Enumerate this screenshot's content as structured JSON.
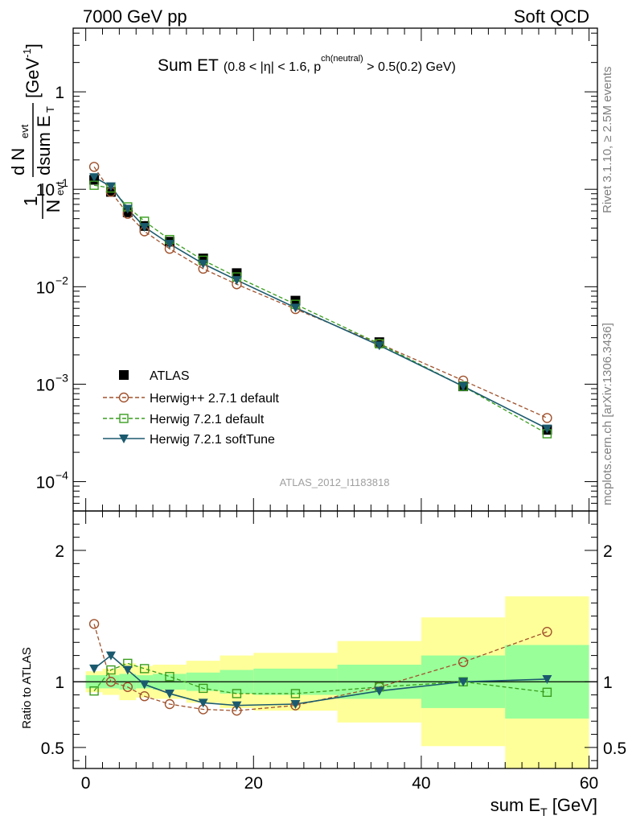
{
  "header": {
    "left": "7000 GeV pp",
    "right": "Soft QCD"
  },
  "side_labels": {
    "rivet": "Rivet 3.1.10, ≥ 2.5M events",
    "mcplots": "mcplots.cern.ch [arXiv:1306.3436]"
  },
  "title": {
    "main": "Sum ET",
    "cut_a": "(0.8 < |η| < 1.6, p",
    "cut_sup": "ch(neutral)",
    "cut_b": " > 0.5(0.2) GeV)"
  },
  "analysis_id": "ATLAS_2012_I1183818",
  "axes": {
    "ylabel_top_frac_num": "1",
    "ylabel_top_frac_den": "N",
    "ylabel_top_den_sub": "evt",
    "ylabel_top_num": "d N",
    "ylabel_top_num_sub": "evt",
    "ylabel_top_dsum": "dsum E",
    "ylabel_top_dsum_sub": "T",
    "ylabel_top_unit": "[GeV",
    "ylabel_top_unit_sup": "-1",
    "ylabel_top_unit_close": "]",
    "ylabel_bottom": "Ratio to ATLAS",
    "xlabel": "sum E",
    "xlabel_sub": "T",
    "xlabel_unit": " [GeV]"
  },
  "colors": {
    "atlas": "#000000",
    "herwigpp": "#a0522d",
    "herwig721": "#3a9e1e",
    "softtune": "#1b5a6e",
    "band_yellow": "#ffff99",
    "band_green": "#99ff99"
  },
  "chart_data": [
    {
      "type": "scatter",
      "panel": "main",
      "yscale": "log",
      "xlim": [
        -1.5,
        61
      ],
      "ylim": [
        5e-05,
        4.5
      ],
      "y_ticks": [
        {
          "value": 1,
          "label": "1"
        },
        {
          "value": 0.1,
          "label": "10",
          "exp": "−1"
        },
        {
          "value": 0.01,
          "label": "10",
          "exp": "−2"
        },
        {
          "value": 0.001,
          "label": "10",
          "exp": "−3"
        },
        {
          "value": 0.0001,
          "label": "10",
          "exp": "−4"
        }
      ],
      "x": [
        1,
        3,
        5,
        7,
        10,
        14,
        18,
        25,
        35,
        45,
        55
      ],
      "series": [
        {
          "name": "ATLAS",
          "key": "atlas",
          "marker": "square-filled",
          "values": [
            0.125,
            0.094,
            0.058,
            0.042,
            0.029,
            0.0195,
            0.0138,
            0.0072,
            0.0027,
            0.00095,
            0.00034
          ]
        },
        {
          "name": "Herwig++ 2.7.1 default",
          "key": "herwigpp",
          "marker": "circle-open",
          "dash": true,
          "values": [
            0.17,
            0.094,
            0.056,
            0.037,
            0.0245,
            0.0153,
            0.0106,
            0.0059,
            0.0026,
            0.00109,
            0.00045
          ]
        },
        {
          "name": "Herwig 7.2.1 default",
          "key": "herwig721",
          "marker": "square-open",
          "dash": true,
          "values": [
            0.11,
            0.103,
            0.066,
            0.047,
            0.0305,
            0.0187,
            0.0126,
            0.0066,
            0.0026,
            0.00095,
            0.00031
          ]
        },
        {
          "name": "Herwig 7.2.1 softTune",
          "key": "softtune",
          "marker": "triangle-down",
          "dash": false,
          "values": [
            0.133,
            0.107,
            0.063,
            0.041,
            0.0275,
            0.0172,
            0.0117,
            0.0061,
            0.0025,
            0.00095,
            0.00035
          ]
        }
      ]
    },
    {
      "type": "scatter",
      "panel": "ratio",
      "xlabel": "sum E_T [GeV]",
      "ylabel": "Ratio to ATLAS",
      "xlim": [
        -1.5,
        61
      ],
      "ylim": [
        0.34,
        2.3
      ],
      "x_ticks": [
        0,
        20,
        40,
        60
      ],
      "y_ticks": [
        0.5,
        1,
        2
      ],
      "bins": [
        [
          0,
          2
        ],
        [
          2,
          4
        ],
        [
          4,
          6
        ],
        [
          6,
          8
        ],
        [
          8,
          12
        ],
        [
          12,
          16
        ],
        [
          16,
          20
        ],
        [
          20,
          30
        ],
        [
          30,
          40
        ],
        [
          40,
          50
        ],
        [
          50,
          60
        ]
      ],
      "band_yellow": [
        [
          0.92,
          1.08
        ],
        [
          0.9,
          1.1
        ],
        [
          0.86,
          1.14
        ],
        [
          0.88,
          1.12
        ],
        [
          0.87,
          1.13
        ],
        [
          0.84,
          1.16
        ],
        [
          0.8,
          1.2
        ],
        [
          0.78,
          1.22
        ],
        [
          0.69,
          1.31
        ],
        [
          0.51,
          1.49
        ],
        [
          0.34,
          1.65
        ]
      ],
      "band_green": [
        [
          0.95,
          1.05
        ],
        [
          0.95,
          1.05
        ],
        [
          0.94,
          1.06
        ],
        [
          0.95,
          1.05
        ],
        [
          0.94,
          1.06
        ],
        [
          0.93,
          1.07
        ],
        [
          0.91,
          1.09
        ],
        [
          0.9,
          1.1
        ],
        [
          0.87,
          1.13
        ],
        [
          0.8,
          1.2
        ],
        [
          0.72,
          1.28
        ]
      ],
      "x": [
        1,
        3,
        5,
        7,
        10,
        14,
        18,
        25,
        35,
        45,
        55
      ],
      "series": [
        {
          "name": "Herwig++ 2.7.1 default",
          "key": "herwigpp",
          "marker": "circle-open",
          "dash": true,
          "values": [
            1.44,
            1.0,
            0.96,
            0.89,
            0.83,
            0.79,
            0.78,
            0.82,
            0.96,
            1.15,
            1.38
          ]
        },
        {
          "name": "Herwig 7.2.1 default",
          "key": "herwig721",
          "marker": "square-open",
          "dash": true,
          "values": [
            0.93,
            1.09,
            1.14,
            1.1,
            1.04,
            0.95,
            0.91,
            0.91,
            0.96,
            1.0,
            0.92
          ]
        },
        {
          "name": "Herwig 7.2.1 softTune",
          "key": "softtune",
          "marker": "triangle-down",
          "dash": false,
          "values": [
            1.1,
            1.2,
            1.09,
            0.98,
            0.91,
            0.84,
            0.82,
            0.83,
            0.93,
            1.0,
            1.02
          ]
        }
      ]
    }
  ]
}
